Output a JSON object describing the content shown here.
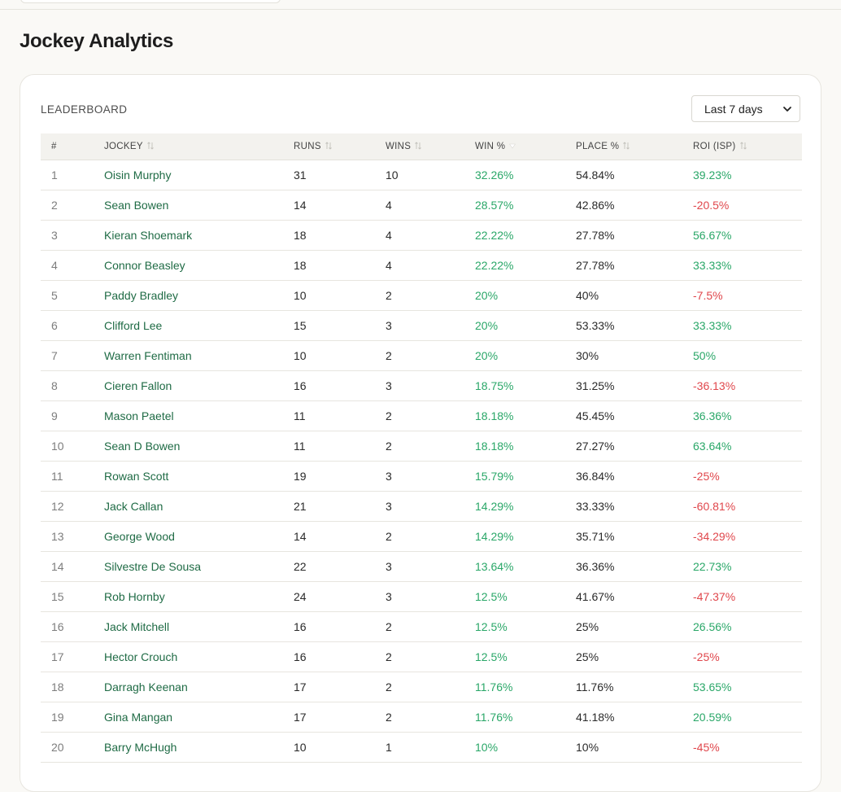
{
  "page": {
    "title": "Jockey Analytics"
  },
  "leaderboard": {
    "label": "LEADERBOARD",
    "period_selected": "Last 7 days",
    "columns": [
      "#",
      "JOCKEY",
      "RUNS",
      "WINS",
      "WIN %",
      "PLACE %",
      "ROI (ISP)"
    ],
    "rows": [
      {
        "rank": "1",
        "jockey": "Oisin Murphy",
        "runs": "31",
        "wins": "10",
        "win_pct": "32.26%",
        "place_pct": "54.84%",
        "roi": "39.23%"
      },
      {
        "rank": "2",
        "jockey": "Sean Bowen",
        "runs": "14",
        "wins": "4",
        "win_pct": "28.57%",
        "place_pct": "42.86%",
        "roi": "-20.5%"
      },
      {
        "rank": "3",
        "jockey": "Kieran Shoemark",
        "runs": "18",
        "wins": "4",
        "win_pct": "22.22%",
        "place_pct": "27.78%",
        "roi": "56.67%"
      },
      {
        "rank": "4",
        "jockey": "Connor Beasley",
        "runs": "18",
        "wins": "4",
        "win_pct": "22.22%",
        "place_pct": "27.78%",
        "roi": "33.33%"
      },
      {
        "rank": "5",
        "jockey": "Paddy Bradley",
        "runs": "10",
        "wins": "2",
        "win_pct": "20%",
        "place_pct": "40%",
        "roi": "-7.5%"
      },
      {
        "rank": "6",
        "jockey": "Clifford Lee",
        "runs": "15",
        "wins": "3",
        "win_pct": "20%",
        "place_pct": "53.33%",
        "roi": "33.33%"
      },
      {
        "rank": "7",
        "jockey": "Warren Fentiman",
        "runs": "10",
        "wins": "2",
        "win_pct": "20%",
        "place_pct": "30%",
        "roi": "50%"
      },
      {
        "rank": "8",
        "jockey": "Cieren Fallon",
        "runs": "16",
        "wins": "3",
        "win_pct": "18.75%",
        "place_pct": "31.25%",
        "roi": "-36.13%"
      },
      {
        "rank": "9",
        "jockey": "Mason Paetel",
        "runs": "11",
        "wins": "2",
        "win_pct": "18.18%",
        "place_pct": "45.45%",
        "roi": "36.36%"
      },
      {
        "rank": "10",
        "jockey": "Sean D Bowen",
        "runs": "11",
        "wins": "2",
        "win_pct": "18.18%",
        "place_pct": "27.27%",
        "roi": "63.64%"
      },
      {
        "rank": "11",
        "jockey": "Rowan Scott",
        "runs": "19",
        "wins": "3",
        "win_pct": "15.79%",
        "place_pct": "36.84%",
        "roi": "-25%"
      },
      {
        "rank": "12",
        "jockey": "Jack Callan",
        "runs": "21",
        "wins": "3",
        "win_pct": "14.29%",
        "place_pct": "33.33%",
        "roi": "-60.81%"
      },
      {
        "rank": "13",
        "jockey": "George Wood",
        "runs": "14",
        "wins": "2",
        "win_pct": "14.29%",
        "place_pct": "35.71%",
        "roi": "-34.29%"
      },
      {
        "rank": "14",
        "jockey": "Silvestre De Sousa",
        "runs": "22",
        "wins": "3",
        "win_pct": "13.64%",
        "place_pct": "36.36%",
        "roi": "22.73%"
      },
      {
        "rank": "15",
        "jockey": "Rob Hornby",
        "runs": "24",
        "wins": "3",
        "win_pct": "12.5%",
        "place_pct": "41.67%",
        "roi": "-47.37%"
      },
      {
        "rank": "16",
        "jockey": "Jack Mitchell",
        "runs": "16",
        "wins": "2",
        "win_pct": "12.5%",
        "place_pct": "25%",
        "roi": "26.56%"
      },
      {
        "rank": "17",
        "jockey": "Hector Crouch",
        "runs": "16",
        "wins": "2",
        "win_pct": "12.5%",
        "place_pct": "25%",
        "roi": "-25%"
      },
      {
        "rank": "18",
        "jockey": "Darragh Keenan",
        "runs": "17",
        "wins": "2",
        "win_pct": "11.76%",
        "place_pct": "11.76%",
        "roi": "53.65%"
      },
      {
        "rank": "19",
        "jockey": "Gina Mangan",
        "runs": "17",
        "wins": "2",
        "win_pct": "11.76%",
        "place_pct": "41.18%",
        "roi": "20.59%"
      },
      {
        "rank": "20",
        "jockey": "Barry McHugh",
        "runs": "10",
        "wins": "1",
        "win_pct": "10%",
        "place_pct": "10%",
        "roi": "-45%"
      }
    ]
  },
  "colors": {
    "positive": "#2aa768",
    "negative": "#e0474c",
    "jockey_link": "#1f6b45"
  }
}
